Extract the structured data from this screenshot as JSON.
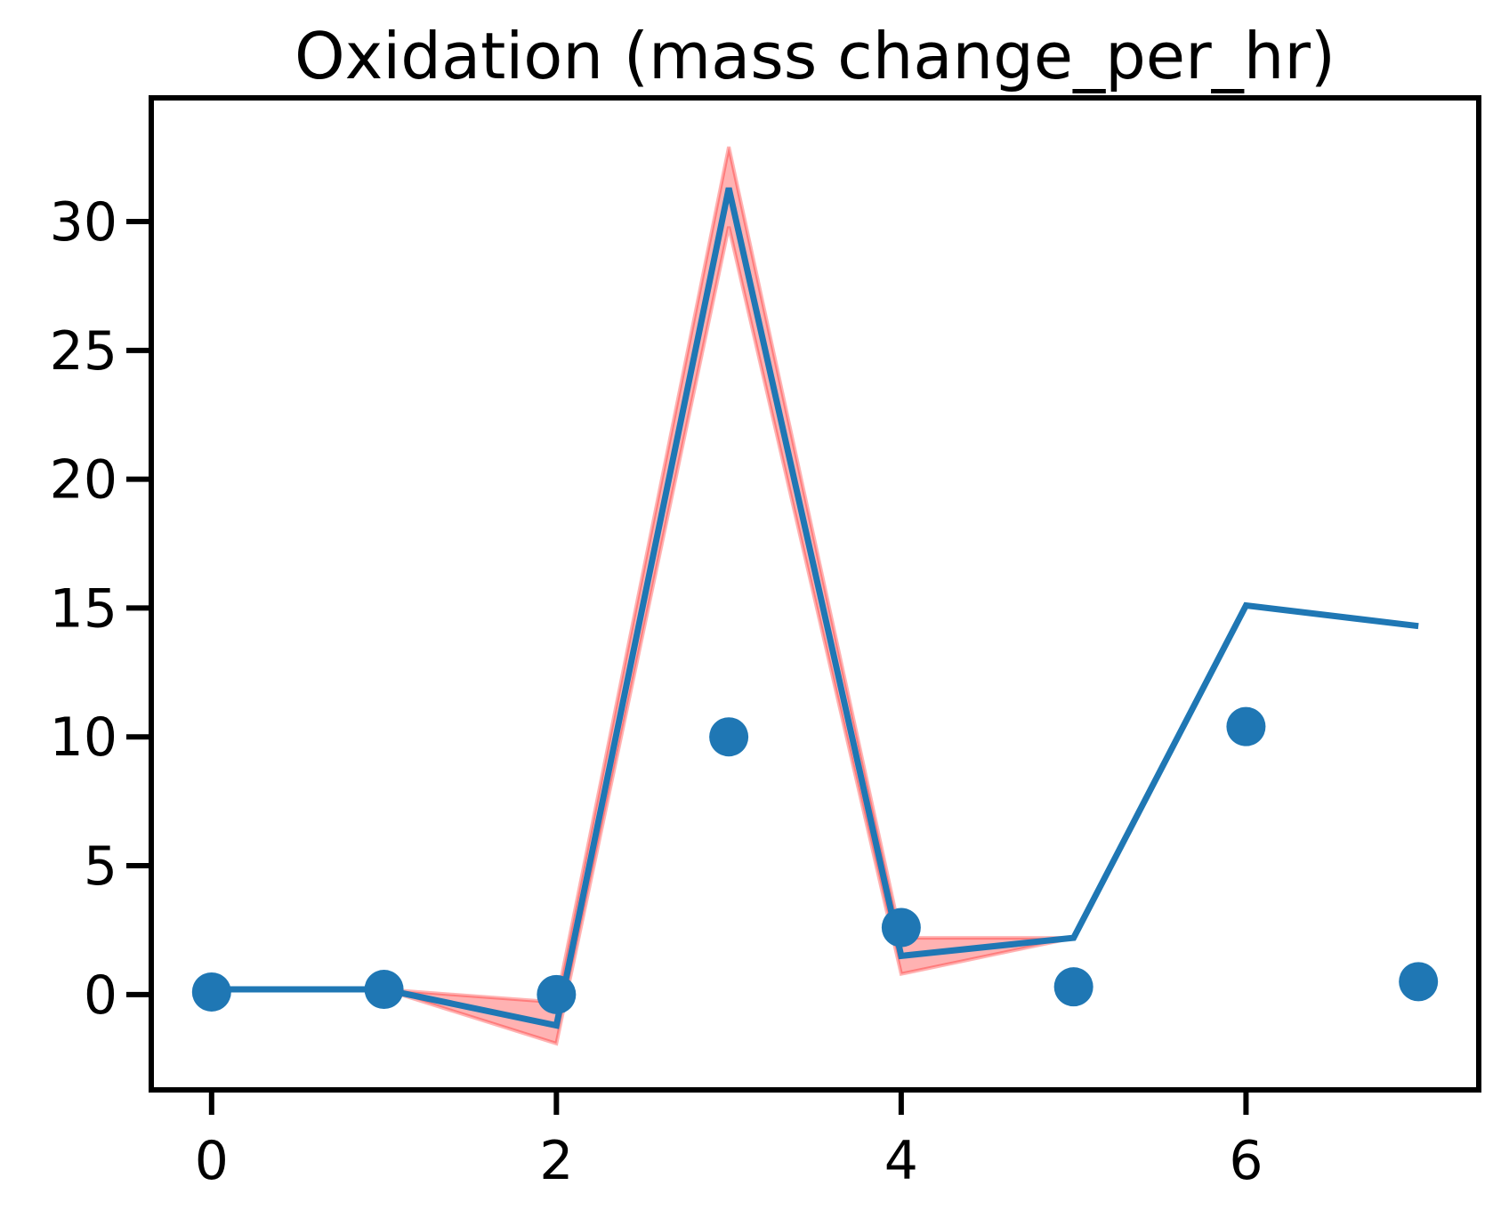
{
  "chart_data": {
    "type": "line",
    "title": "Oxidation (mass change_per_hr)",
    "xlabel": "",
    "ylabel": "",
    "xlim": [
      -0.35,
      7.35
    ],
    "ylim": [
      -3.7,
      34.8
    ],
    "x_ticks": [
      0,
      2,
      4,
      6
    ],
    "y_ticks": [
      0,
      5,
      10,
      15,
      20,
      25,
      30
    ],
    "grid": false,
    "legend": "none",
    "series": [
      {
        "kind": "band",
        "color": "#ff0000",
        "opacity": 0.3,
        "x": [
          1,
          2,
          3,
          4,
          5
        ],
        "lower": [
          0.2,
          -1.9,
          29.8,
          0.8,
          2.2
        ],
        "upper": [
          0.2,
          -0.3,
          32.9,
          2.2,
          2.2
        ]
      },
      {
        "kind": "line",
        "color": "#1f77b4",
        "x": [
          0,
          1,
          2,
          3,
          4,
          5,
          6,
          7
        ],
        "y": [
          0.2,
          0.2,
          -1.2,
          31.3,
          1.5,
          2.2,
          15.1,
          14.3
        ]
      },
      {
        "kind": "scatter",
        "color": "#1f77b4",
        "x": [
          0,
          1,
          2,
          3,
          4,
          5,
          6,
          7
        ],
        "y": [
          0.1,
          0.2,
          0.0,
          10.0,
          2.6,
          0.3,
          10.4,
          0.5
        ]
      }
    ]
  }
}
